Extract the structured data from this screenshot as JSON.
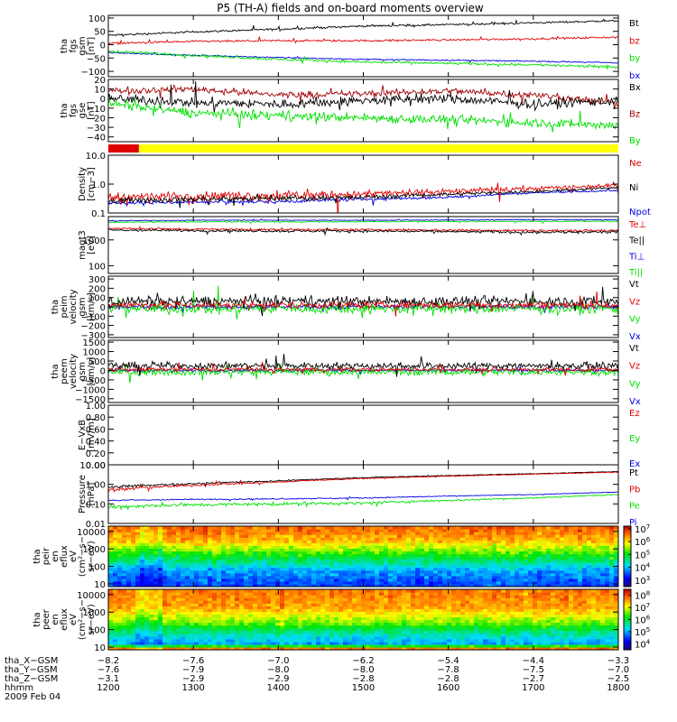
{
  "title": "P5 (TH-A) fields and on-board moments overview",
  "colors": {
    "black": "#000000",
    "red": "#e00000",
    "darkred": "#a00000",
    "green": "#00e000",
    "blue": "#0000e0",
    "orange": "#ff8000",
    "yellow": "#ffff00"
  },
  "chart_data": [
    {
      "type": "line",
      "ylabel_lines": [
        "tha",
        "fgs",
        "gsm",
        "[nT]"
      ],
      "ylim": [
        -120,
        110
      ],
      "yticks": [
        100,
        50,
        0,
        -50,
        -100
      ],
      "ytick_labels": [
        "100",
        "50",
        "0",
        "−50",
        "−100"
      ],
      "legend": [
        {
          "label": "Bt",
          "color": "#000000"
        },
        {
          "label": "bz",
          "color": "#e00000"
        },
        {
          "label": "by",
          "color": "#00e000"
        },
        {
          "label": "bx",
          "color": "#0000e0"
        }
      ],
      "series": [
        {
          "name": "Bt",
          "color": "#000000",
          "x": [
            1200,
            1300,
            1400,
            1500,
            1600,
            1700,
            1800
          ],
          "y": [
            35,
            48,
            58,
            70,
            75,
            82,
            90
          ],
          "noise": 3
        },
        {
          "name": "bz",
          "color": "#e00000",
          "x": [
            1200,
            1300,
            1400,
            1500,
            1600,
            1700,
            1800
          ],
          "y": [
            5,
            12,
            15,
            15,
            18,
            22,
            28
          ],
          "noise": 3
        },
        {
          "name": "bx",
          "color": "#0000e0",
          "x": [
            1200,
            1300,
            1400,
            1500,
            1600,
            1700,
            1800
          ],
          "y": [
            -30,
            -40,
            -48,
            -55,
            -58,
            -62,
            -68
          ],
          "noise": 2
        },
        {
          "name": "by",
          "color": "#00e000",
          "x": [
            1200,
            1300,
            1400,
            1500,
            1600,
            1700,
            1800
          ],
          "y": [
            -25,
            -40,
            -55,
            -65,
            -70,
            -75,
            -85
          ],
          "noise": 4
        }
      ]
    },
    {
      "type": "line",
      "ylabel_lines": [
        "tha",
        "fgs",
        "gse",
        "[nT]"
      ],
      "ylim": [
        -45,
        20
      ],
      "yticks": [
        20,
        10,
        0,
        -10,
        -20,
        -30,
        -40
      ],
      "ytick_labels": [
        "20",
        "10",
        "0",
        "−10",
        "−20",
        "−30",
        "−40"
      ],
      "legend": [
        {
          "label": "Bx",
          "color": "#000000"
        },
        {
          "label": "Bz",
          "color": "#a00000"
        },
        {
          "label": "By",
          "color": "#00e000"
        }
      ],
      "series": [
        {
          "name": "Bz",
          "color": "#a00000",
          "x": [
            1200,
            1300,
            1400,
            1500,
            1600,
            1700,
            1800
          ],
          "y": [
            8,
            10,
            4,
            5,
            8,
            4,
            -5
          ],
          "noise": 3
        },
        {
          "name": "Bx",
          "color": "#000000",
          "x": [
            1200,
            1300,
            1400,
            1500,
            1600,
            1700,
            1800
          ],
          "y": [
            0,
            -4,
            -6,
            -2,
            0,
            -6,
            -2
          ],
          "noise": 4
        },
        {
          "name": "By",
          "color": "#00e000",
          "x": [
            1200,
            1300,
            1400,
            1500,
            1600,
            1700,
            1800
          ],
          "y": [
            -5,
            -15,
            -18,
            -20,
            -22,
            -25,
            -28
          ],
          "noise": 4
        }
      ]
    },
    {
      "type": "bar",
      "mode_bar": true,
      "segments": [
        {
          "x0": 1200,
          "x1": 1236,
          "color": "#e00000"
        },
        {
          "x0": 1236,
          "x1": 1800,
          "color": "#ffff00"
        }
      ]
    },
    {
      "type": "line",
      "log": true,
      "ylabel_lines": [
        "Density",
        "[cm−3]"
      ],
      "ylim": [
        0.1,
        10
      ],
      "yticks": [
        10,
        1,
        0.1
      ],
      "ytick_labels": [
        "10.0",
        "1.0",
        "0.1"
      ],
      "legend": [
        {
          "label": "Ne",
          "color": "#e00000"
        },
        {
          "label": "Ni",
          "color": "#000000"
        },
        {
          "label": "Npot",
          "color": "#0000e0"
        }
      ],
      "series": [
        {
          "name": "Npot",
          "color": "#0000e0",
          "x": [
            1200,
            1300,
            1400,
            1500,
            1600,
            1700,
            1800
          ],
          "y": [
            0.22,
            0.24,
            0.25,
            0.3,
            0.35,
            0.5,
            0.6
          ],
          "noise": 0.03
        },
        {
          "name": "Ne",
          "color": "#e00000",
          "x": [
            1200,
            1300,
            1400,
            1500,
            1600,
            1700,
            1800
          ],
          "y": [
            0.35,
            0.4,
            0.4,
            0.45,
            0.55,
            0.7,
            0.9
          ],
          "noise": 0.12
        },
        {
          "name": "Ni",
          "color": "#000000",
          "x": [
            1200,
            1300,
            1400,
            1500,
            1600,
            1700,
            1800
          ],
          "y": [
            0.28,
            0.3,
            0.32,
            0.35,
            0.45,
            0.55,
            0.75
          ],
          "noise": 0.05
        }
      ]
    },
    {
      "type": "line",
      "log": true,
      "ylabel_lines": [
        "magt3",
        "[eV]"
      ],
      "ylim": [
        50,
        8000
      ],
      "yticks": [
        1000,
        100
      ],
      "ytick_labels": [
        "1000",
        "100"
      ],
      "legend": [
        {
          "label": "Te⊥",
          "color": "#e00000"
        },
        {
          "label": "Te||",
          "color": "#000000"
        },
        {
          "label": "Ti⊥",
          "color": "#0000e0"
        },
        {
          "label": "Ti||",
          "color": "#00e000"
        }
      ],
      "series": [
        {
          "name": "Ti⊥",
          "color": "#0000e0",
          "x": [
            1200,
            1300,
            1400,
            1500,
            1600,
            1700,
            1800
          ],
          "y": [
            5500,
            5800,
            5800,
            5800,
            5900,
            6000,
            6000
          ],
          "noise": 150
        },
        {
          "name": "Ti||",
          "color": "#00e000",
          "x": [
            1200,
            1300,
            1400,
            1500,
            1600,
            1700,
            1800
          ],
          "y": [
            4800,
            5000,
            5000,
            5100,
            5200,
            5200,
            5300
          ],
          "noise": 200
        },
        {
          "name": "Te⊥",
          "color": "#e00000",
          "x": [
            1200,
            1300,
            1400,
            1500,
            1600,
            1700,
            1800
          ],
          "y": [
            2800,
            2600,
            2500,
            2500,
            2400,
            2300,
            2300
          ],
          "noise": 200
        },
        {
          "name": "Te||",
          "color": "#000000",
          "x": [
            1200,
            1300,
            1400,
            1500,
            1600,
            1700,
            1800
          ],
          "y": [
            2400,
            2300,
            2200,
            2200,
            2100,
            2000,
            2000
          ],
          "noise": 200
        }
      ]
    },
    {
      "type": "line",
      "ylabel_lines": [
        "tha",
        "peim",
        "velocity",
        "gsm",
        "[km/s]"
      ],
      "ylim": [
        -330,
        330
      ],
      "yticks": [
        300,
        200,
        100,
        0,
        -100,
        -200,
        -300
      ],
      "ytick_labels": [
        "300",
        "200",
        "100",
        "0",
        "−100",
        "−200",
        "−300"
      ],
      "legend": [
        {
          "label": "Vt",
          "color": "#000000"
        },
        {
          "label": "Vz",
          "color": "#e00000"
        },
        {
          "label": "Vy",
          "color": "#00e000"
        },
        {
          "label": "Vx",
          "color": "#0000e0"
        }
      ],
      "series": [
        {
          "name": "Vx",
          "color": "#0000e0",
          "x": [
            1200,
            1800
          ],
          "y": [
            0,
            0
          ],
          "noise": 20
        },
        {
          "name": "Vy",
          "color": "#00e000",
          "x": [
            1200,
            1800
          ],
          "y": [
            -20,
            -20
          ],
          "noise": 45
        },
        {
          "name": "Vt",
          "color": "#000000",
          "x": [
            1200,
            1800
          ],
          "y": [
            60,
            60
          ],
          "noise": 45
        },
        {
          "name": "Vz",
          "color": "#e00000",
          "x": [
            1200,
            1800
          ],
          "y": [
            20,
            20
          ],
          "noise": 30
        }
      ]
    },
    {
      "type": "line",
      "ylabel_lines": [
        "tha",
        "peem",
        "velocity",
        "gsm",
        "[km/s]"
      ],
      "ylim": [
        -1700,
        1600
      ],
      "yticks": [
        1500,
        1000,
        500,
        0,
        -500,
        -1000,
        -1500
      ],
      "ytick_labels": [
        "1500",
        "1000",
        "500",
        "0",
        "−500",
        "−1000",
        "−1500"
      ],
      "legend": [
        {
          "label": "Vt",
          "color": "#000000"
        },
        {
          "label": "Vz",
          "color": "#e00000"
        },
        {
          "label": "Vy",
          "color": "#00e000"
        },
        {
          "label": "Vx",
          "color": "#0000e0"
        }
      ],
      "series": [
        {
          "name": "Vx",
          "color": "#0000e0",
          "x": [
            1200,
            1800
          ],
          "y": [
            0,
            0
          ],
          "noise": 60
        },
        {
          "name": "Vy",
          "color": "#00e000",
          "x": [
            1200,
            1800
          ],
          "y": [
            -80,
            -80
          ],
          "noise": 150
        },
        {
          "name": "Vt",
          "color": "#000000",
          "x": [
            1200,
            1800
          ],
          "y": [
            250,
            250
          ],
          "noise": 150
        },
        {
          "name": "Vz",
          "color": "#e00000",
          "x": [
            1200,
            1800
          ],
          "y": [
            50,
            50
          ],
          "noise": 80
        }
      ]
    },
    {
      "type": "line",
      "ylabel_lines": [
        "E−VxB",
        "[mV/m]"
      ],
      "ylim": [
        0,
        1
      ],
      "yticks": [
        1,
        0.8,
        0.6,
        0.4,
        0.2,
        0
      ],
      "ytick_labels": [
        "1.00",
        "0.80",
        "0.60",
        "0.40",
        "0.20",
        "0.00"
      ],
      "legend": [
        {
          "label": "Ez",
          "color": "#e00000"
        },
        {
          "label": "Ey",
          "color": "#00e000"
        },
        {
          "label": "Ex",
          "color": "#0000e0"
        }
      ],
      "series": []
    },
    {
      "type": "line",
      "log": true,
      "ylabel_lines": [
        "Pressure",
        "[nPa]"
      ],
      "ylim": [
        0.01,
        10
      ],
      "yticks": [
        10,
        1,
        0.1,
        0.01
      ],
      "ytick_labels": [
        "10.00",
        "1.00",
        "0.10",
        "0.01"
      ],
      "legend": [
        {
          "label": "Pt",
          "color": "#000000"
        },
        {
          "label": "Pb",
          "color": "#e00000"
        },
        {
          "label": "Pe",
          "color": "#00e000"
        },
        {
          "label": "Pi",
          "color": "#0000e0"
        }
      ],
      "series": [
        {
          "name": "Pe",
          "color": "#00e000",
          "x": [
            1200,
            1300,
            1400,
            1500,
            1600,
            1700,
            1800
          ],
          "y": [
            0.07,
            0.09,
            0.1,
            0.11,
            0.15,
            0.2,
            0.3
          ],
          "noise": 0.015
        },
        {
          "name": "Pi",
          "color": "#0000e0",
          "x": [
            1200,
            1300,
            1400,
            1500,
            1600,
            1700,
            1800
          ],
          "y": [
            0.15,
            0.17,
            0.18,
            0.2,
            0.25,
            0.3,
            0.4
          ],
          "noise": 0.01
        },
        {
          "name": "Pt",
          "color": "#000000",
          "x": [
            1200,
            1300,
            1400,
            1500,
            1600,
            1700,
            1800
          ],
          "y": [
            0.7,
            1.1,
            1.5,
            2.2,
            2.8,
            3.5,
            4.5
          ],
          "noise": 0.1
        },
        {
          "name": "Pb",
          "color": "#e00000",
          "x": [
            1200,
            1300,
            1400,
            1500,
            1600,
            1700,
            1800
          ],
          "y": [
            0.5,
            0.9,
            1.3,
            2.0,
            2.6,
            3.3,
            4.2
          ],
          "noise": 0.1
        }
      ]
    },
    {
      "type": "heatmap",
      "log": true,
      "ylabel_lines": [
        "tha",
        "peir",
        "en",
        "eflux",
        "eV",
        "(cm²−s−",
        "sr−eV)"
      ],
      "ylim": [
        7,
        20000
      ],
      "yticks": [
        10000,
        1000,
        100,
        10
      ],
      "ytick_labels": [
        "10000",
        "1000",
        "100",
        "10"
      ],
      "colorbar_ticks": [
        7,
        6,
        5,
        4,
        3
      ],
      "colorbar_range": [
        2.5,
        7.2
      ],
      "profile": [
        {
          "energy": 10,
          "value": 3.5
        },
        {
          "energy": 60,
          "value": 3.9
        },
        {
          "energy": 400,
          "value": 5.0
        },
        {
          "energy": 3000,
          "value": 6.2
        },
        {
          "energy": 15000,
          "value": 6.6
        }
      ]
    },
    {
      "type": "heatmap",
      "log": true,
      "ylabel_lines": [
        "tha",
        "peer",
        "en",
        "eflux",
        "eV",
        "(cm²−s−",
        "sr−eV)"
      ],
      "ylim": [
        7,
        20000
      ],
      "yticks": [
        10000,
        1000,
        100,
        10
      ],
      "ytick_labels": [
        "10000",
        "1000",
        "100",
        "10"
      ],
      "colorbar_ticks": [
        8,
        7,
        6,
        5,
        4
      ],
      "colorbar_range": [
        3.5,
        8.5
      ],
      "profile": [
        {
          "energy": 9,
          "value": 7.8
        },
        {
          "energy": 15,
          "value": 5.0
        },
        {
          "energy": 60,
          "value": 5.6
        },
        {
          "energy": 300,
          "value": 6.7
        },
        {
          "energy": 2000,
          "value": 7.6
        },
        {
          "energy": 15000,
          "value": 7.8
        }
      ]
    }
  ],
  "xaxis": {
    "ticks": [
      1200,
      1300,
      1400,
      1500,
      1600,
      1700,
      1800
    ],
    "rows": [
      {
        "label": "tha_X−GSM",
        "values": [
          "−8.2",
          "−7.6",
          "−7.0",
          "−6.2",
          "−5.4",
          "−4.4",
          "−3.3"
        ]
      },
      {
        "label": "tha_Y−GSM",
        "values": [
          "−7.6",
          "−7.9",
          "−8.0",
          "−8.0",
          "−7.8",
          "−7.5",
          "−7.0"
        ]
      },
      {
        "label": "tha_Z−GSM",
        "values": [
          "−3.1",
          "−2.9",
          "−2.9",
          "−2.8",
          "−2.8",
          "−2.7",
          "−2.5"
        ]
      },
      {
        "label": "hhmm",
        "values": [
          "1200",
          "1300",
          "1400",
          "1500",
          "1600",
          "1700",
          "1800"
        ]
      }
    ],
    "date": "2009 Feb 04"
  }
}
